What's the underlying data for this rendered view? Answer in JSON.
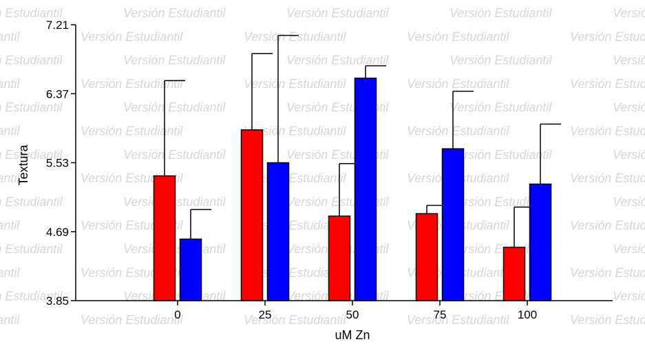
{
  "watermark": "Versión Estudiantil",
  "chart_data": {
    "type": "bar",
    "title": "",
    "xlabel": "uM Zn",
    "ylabel": "Textura",
    "categories": [
      "0",
      "25",
      "50",
      "75",
      "100"
    ],
    "ylim": [
      3.85,
      7.21
    ],
    "yticks": [
      "3.85",
      "4.69",
      "5.53",
      "6.37",
      "7.21"
    ],
    "series": [
      {
        "color": "#ff0000",
        "values": [
          5.37,
          5.93,
          4.88,
          4.91,
          4.5
        ],
        "errors": [
          1.16,
          0.93,
          0.64,
          0.1,
          0.49
        ]
      },
      {
        "color": "#0000ff",
        "values": [
          4.6,
          5.53,
          6.56,
          5.7,
          5.27
        ],
        "errors": [
          0.36,
          1.55,
          0.15,
          0.7,
          0.73
        ]
      }
    ],
    "grid": false,
    "legend": "none"
  }
}
